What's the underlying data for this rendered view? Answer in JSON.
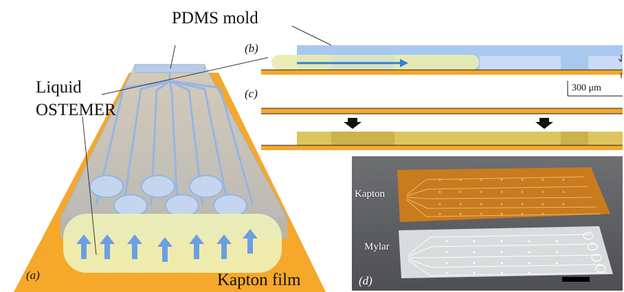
{
  "labels": {
    "pdms_mold": "PDMS mold",
    "liquid_line1": "Liquid",
    "liquid_line2": "OSTEMER",
    "kapton_film": "Kapton film",
    "scale_text": "300 μm",
    "photo_kapton": "Kapton",
    "photo_mylar": "Mylar"
  },
  "panels": {
    "a": "a",
    "b": "b",
    "c": "c",
    "d": "d"
  },
  "colors": {
    "kapton": "#f5a82a",
    "pdms": "#a9c8ee",
    "ostemer": "#e9ecb0",
    "cured": "#d9c25a",
    "arrow": "#2f7fd3",
    "photo_bg": "#5f6063"
  },
  "icons": {
    "flow_arrow": "up-arrow-icon",
    "press_arrow": "down-arrow-icon",
    "scale_bar": "scale-bar-icon"
  }
}
